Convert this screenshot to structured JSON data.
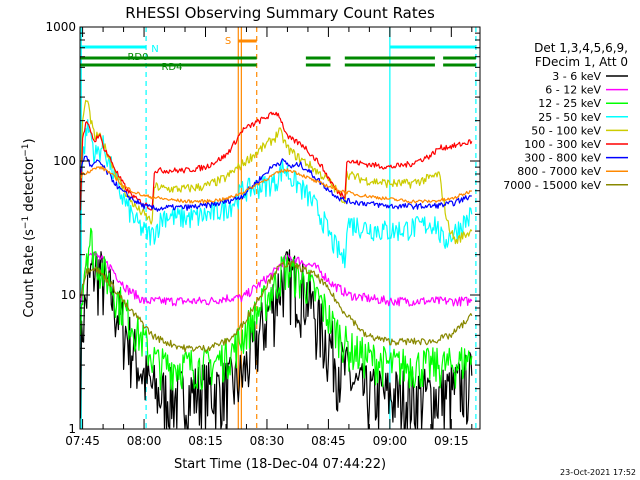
{
  "chart_data": {
    "type": "line",
    "title": "RHESSI Observing Summary Count Rates",
    "xlabel": "Start Time (18-Dec-04 07:44:22)",
    "ylabel": "Count Rate (s⁻¹ detector⁻¹)",
    "ylabel_parts": {
      "main": "Count Rate (s",
      "sup1": "−1",
      "mid": " detector",
      "sup2": "−1",
      "end": ")"
    },
    "y_scale": "log",
    "ylim": [
      1,
      1000
    ],
    "y_ticks": [
      "1",
      "10",
      "100",
      "1000"
    ],
    "xlim": [
      "07:44:22",
      "09:22:00"
    ],
    "x_ticks": [
      "07:45",
      "08:00",
      "08:15",
      "08:30",
      "08:45",
      "09:00",
      "09:15"
    ],
    "timestamp": "23-Oct-2021 17:52",
    "legend": {
      "placement": "top-right",
      "header": [
        "Det 1,3,4,5,6,9,",
        "FDecim 1, Att 0"
      ],
      "entries": [
        {
          "label": "3 - 6 keV",
          "color": "#000000"
        },
        {
          "label": "6 - 12 keV",
          "color": "#ff00ff"
        },
        {
          "label": "12 - 25 keV",
          "color": "#00ff00"
        },
        {
          "label": "25 - 50 keV",
          "color": "#00ffff"
        },
        {
          "label": "50 - 100 keV",
          "color": "#cccc00"
        },
        {
          "label": "100 - 300 keV",
          "color": "#ff0000"
        },
        {
          "label": "300 - 800 keV",
          "color": "#0000ff"
        },
        {
          "label": "800 - 7000 keV",
          "color": "#ff8800"
        },
        {
          "label": "7000 - 15000 keV",
          "color": "#888800"
        }
      ]
    },
    "flag_bars": [
      {
        "label": "N",
        "color": "#00ffff",
        "segments": [
          [
            "07:44:22",
            "08:00:30"
          ],
          [
            "09:00:00",
            "09:21:00"
          ]
        ]
      },
      {
        "label": "S",
        "color": "#ff8800",
        "segments": [
          [
            "08:23:00",
            "08:27:30"
          ]
        ]
      },
      {
        "label": "RD0",
        "color": "#008800",
        "segments": [
          [
            "07:44:22",
            "08:27:30"
          ],
          [
            "08:39:30",
            "08:45:30"
          ],
          [
            "08:49:00",
            "09:11:00"
          ],
          [
            "09:13:00",
            "09:21:00"
          ]
        ]
      },
      {
        "label": "RD4",
        "color": "#008800",
        "segments": [
          [
            "07:44:22",
            "08:27:30"
          ],
          [
            "08:39:30",
            "08:45:30"
          ],
          [
            "08:49:00",
            "09:11:00"
          ],
          [
            "09:13:00",
            "09:21:00"
          ]
        ]
      }
    ],
    "vertical_markers": [
      {
        "time": "07:44:40",
        "color": "#00ffff",
        "style": "solid"
      },
      {
        "time": "08:00:30",
        "color": "#00ffff",
        "style": "dashed"
      },
      {
        "time": "08:23:00",
        "color": "#ff8800",
        "style": "solid"
      },
      {
        "time": "08:23:45",
        "color": "#ff8800",
        "style": "solid"
      },
      {
        "time": "08:27:30",
        "color": "#ff8800",
        "style": "dashed"
      },
      {
        "time": "09:00:00",
        "color": "#00ffff",
        "style": "solid"
      },
      {
        "time": "09:21:00",
        "color": "#00ffff",
        "style": "dashed"
      }
    ],
    "series": [
      {
        "name": "3 - 6 keV",
        "color": "#000000",
        "noise": 0.6,
        "x": [
          "07:44:30",
          "07:45:00",
          "07:46:00",
          "07:47:00",
          "07:48:00",
          "07:49:00",
          "07:50:00",
          "07:52:00",
          "07:54:00",
          "07:56:00",
          "07:58:00",
          "08:00:00",
          "08:02:00",
          "08:04:00",
          "08:06:00",
          "08:10:00",
          "08:14:00",
          "08:18:00",
          "08:22:00",
          "08:24:00",
          "08:32:00",
          "08:34:00",
          "08:36:00",
          "08:38:00",
          "08:40:00",
          "08:42:00",
          "08:44:00",
          "08:46:00",
          "08:48:00",
          "08:50:00",
          "08:52:00",
          "08:56:00",
          "09:00:00",
          "09:04:00",
          "09:08:00",
          "09:12:00",
          "09:16:00",
          "09:20:00"
        ],
        "y": [
          3,
          6,
          10,
          14,
          16,
          15,
          13,
          10,
          7,
          5,
          3.5,
          2.5,
          2,
          1.8,
          1.8,
          1.8,
          2,
          2,
          2.2,
          2.5,
          10,
          14,
          14,
          12,
          10,
          7,
          5,
          4,
          3,
          2.5,
          2,
          1.8,
          1.8,
          1.8,
          1.8,
          1.8,
          2,
          2.5
        ]
      },
      {
        "name": "6 - 12 keV",
        "color": "#ff00ff",
        "noise": 0.08,
        "x": [
          "07:44:30",
          "07:45:00",
          "07:46:00",
          "07:47:00",
          "07:48:00",
          "07:49:00",
          "07:50:00",
          "07:52:00",
          "07:54:00",
          "07:56:00",
          "07:58:00",
          "08:00:00",
          "08:02:00",
          "08:04:00",
          "08:08:00",
          "08:12:00",
          "08:16:00",
          "08:20:00",
          "08:22:00",
          "08:24:00",
          "08:32:00",
          "08:34:00",
          "08:36:00",
          "08:38:00",
          "08:40:00",
          "08:42:00",
          "08:44:00",
          "08:46:00",
          "08:48:00",
          "08:50:00",
          "08:54:00",
          "09:00:00",
          "09:06:00",
          "09:12:00",
          "09:16:00",
          "09:20:00"
        ],
        "y": [
          8,
          12,
          18,
          22,
          20,
          19,
          18,
          16,
          13,
          11,
          10,
          9,
          9,
          9,
          9,
          9,
          9,
          9.5,
          9.5,
          9.5,
          15,
          18,
          19,
          18,
          17,
          16,
          14,
          12,
          11,
          10,
          9.5,
          9,
          9,
          9,
          9,
          9
        ]
      },
      {
        "name": "12 - 25 keV",
        "color": "#00ff00",
        "noise": 0.35,
        "x": [
          "07:44:30",
          "07:45:00",
          "07:46:00",
          "07:47:00",
          "07:48:00",
          "07:49:00",
          "07:50:00",
          "07:52:00",
          "07:54:00",
          "07:56:00",
          "07:58:00",
          "08:00:00",
          "08:02:00",
          "08:04:00",
          "08:08:00",
          "08:12:00",
          "08:16:00",
          "08:20:00",
          "08:22:00",
          "08:24:00",
          "08:32:00",
          "08:34:00",
          "08:36:00",
          "08:38:00",
          "08:40:00",
          "08:42:00",
          "08:44:00",
          "08:46:00",
          "08:48:00",
          "08:50:00",
          "08:54:00",
          "09:00:00",
          "09:06:00",
          "09:12:00",
          "09:16:00",
          "09:20:00"
        ],
        "y": [
          7,
          12,
          22,
          26,
          20,
          17,
          15,
          12,
          9,
          7,
          5.5,
          4.5,
          3.5,
          3,
          3,
          3,
          3,
          3.5,
          4,
          5,
          12,
          16,
          15,
          13,
          12,
          10,
          8,
          6,
          5,
          4,
          3.5,
          3,
          3,
          3,
          3,
          3.5
        ]
      },
      {
        "name": "25 - 50 keV",
        "color": "#00ffff",
        "noise": 0.2,
        "x": [
          "07:44:30",
          "07:45:00",
          "07:46:00",
          "07:47:00",
          "07:48:00",
          "07:49:00",
          "07:50:00",
          "07:52:00",
          "07:54:00",
          "07:56:00",
          "07:58:00",
          "08:00:00",
          "08:02:00",
          "08:05:00",
          "08:08:00",
          "08:12:00",
          "08:16:00",
          "08:20:00",
          "08:22:00",
          "08:24:00",
          "08:32:00",
          "08:34:00",
          "08:36:00",
          "08:38:00",
          "08:40:00",
          "08:42:00",
          "08:44:00",
          "08:46:00",
          "08:49:00",
          "08:49:30",
          "08:54:00",
          "09:00:00",
          "09:06:00",
          "09:11:00",
          "09:13:00",
          "09:16:00",
          "09:20:00"
        ],
        "y": [
          40,
          100,
          180,
          160,
          110,
          120,
          130,
          90,
          60,
          45,
          35,
          30,
          28,
          40,
          38,
          38,
          40,
          45,
          50,
          60,
          70,
          90,
          75,
          65,
          55,
          45,
          35,
          25,
          18,
          35,
          32,
          30,
          32,
          35,
          25,
          30,
          40
        ]
      },
      {
        "name": "50 - 100 keV",
        "color": "#cccc00",
        "noise": 0.08,
        "x": [
          "07:44:30",
          "07:45:00",
          "07:46:00",
          "07:47:00",
          "07:48:00",
          "07:49:00",
          "07:50:00",
          "07:52:00",
          "07:54:00",
          "07:56:00",
          "07:58:00",
          "08:00:00",
          "08:02:00",
          "08:02:30",
          "08:05:00",
          "08:10:00",
          "08:15:00",
          "08:20:00",
          "08:22:00",
          "08:24:00",
          "08:32:00",
          "08:33:00",
          "08:35:00",
          "08:37:00",
          "08:39:00",
          "08:41:00",
          "08:43:00",
          "08:45:00",
          "08:47:00",
          "08:49:00",
          "08:49:30",
          "08:54:00",
          "09:00:00",
          "09:05:00",
          "09:10:00",
          "09:12:00",
          "09:14:00",
          "09:16:00",
          "09:18:00",
          "09:20:00"
        ],
        "y": [
          60,
          200,
          300,
          200,
          150,
          155,
          135,
          100,
          70,
          55,
          45,
          40,
          35,
          65,
          62,
          62,
          65,
          75,
          85,
          95,
          150,
          170,
          125,
          110,
          100,
          90,
          80,
          72,
          60,
          50,
          80,
          72,
          68,
          68,
          75,
          80,
          35,
          25,
          28,
          30
        ]
      },
      {
        "name": "100 - 300 keV",
        "color": "#ff0000",
        "noise": 0.05,
        "x": [
          "07:44:30",
          "07:45:00",
          "07:46:00",
          "07:47:00",
          "07:48:00",
          "07:49:00",
          "07:50:00",
          "07:52:00",
          "07:54:00",
          "07:56:00",
          "07:58:00",
          "08:00:00",
          "08:02:00",
          "08:02:30",
          "08:05:00",
          "08:10:00",
          "08:15:00",
          "08:20:00",
          "08:22:00",
          "08:24:00",
          "08:32:00",
          "08:33:00",
          "08:35:00",
          "08:37:00",
          "08:39:00",
          "08:41:00",
          "08:43:00",
          "08:45:00",
          "08:47:00",
          "08:49:00",
          "08:49:30",
          "08:54:00",
          "09:00:00",
          "09:05:00",
          "09:10:00",
          "09:12:00",
          "09:16:00",
          "09:20:00"
        ],
        "y": [
          45,
          150,
          200,
          160,
          140,
          160,
          130,
          100,
          75,
          60,
          52,
          48,
          44,
          85,
          85,
          85,
          90,
          110,
          135,
          170,
          230,
          220,
          150,
          140,
          130,
          110,
          95,
          75,
          60,
          55,
          100,
          95,
          90,
          95,
          110,
          125,
          130,
          140
        ]
      },
      {
        "name": "300 - 800 keV",
        "color": "#0000ff",
        "noise": 0.05,
        "x": [
          "07:44:30",
          "07:45:00",
          "07:46:00",
          "07:47:00",
          "07:48:00",
          "07:49:00",
          "07:50:00",
          "07:52:00",
          "07:54:00",
          "07:56:00",
          "07:58:00",
          "08:00:00",
          "08:03:00",
          "08:06:00",
          "08:10:00",
          "08:14:00",
          "08:18:00",
          "08:22:00",
          "08:24:00",
          "08:32:00",
          "08:34:00",
          "08:36:00",
          "08:38:00",
          "08:40:00",
          "08:42:00",
          "08:44:00",
          "08:46:00",
          "08:48:00",
          "08:50:00",
          "08:55:00",
          "09:00:00",
          "09:05:00",
          "09:10:00",
          "09:15:00",
          "09:20:00"
        ],
        "y": [
          80,
          100,
          110,
          90,
          95,
          100,
          90,
          75,
          62,
          55,
          50,
          46,
          44,
          45,
          45,
          46,
          48,
          52,
          55,
          95,
          100,
          90,
          95,
          85,
          75,
          65,
          58,
          52,
          50,
          48,
          46,
          46,
          46,
          48,
          55
        ]
      },
      {
        "name": "800 - 7000 keV",
        "color": "#ff8800",
        "noise": 0.03,
        "x": [
          "07:44:30",
          "07:45:00",
          "07:47:00",
          "07:49:00",
          "07:51:00",
          "07:53:00",
          "07:55:00",
          "07:58:00",
          "08:00:00",
          "08:05:00",
          "08:10:00",
          "08:15:00",
          "08:20:00",
          "08:22:00",
          "08:24:00",
          "08:32:00",
          "08:34:00",
          "08:36:00",
          "08:38:00",
          "08:40:00",
          "08:42:00",
          "08:45:00",
          "08:48:00",
          "08:52:00",
          "08:56:00",
          "09:00:00",
          "09:05:00",
          "09:10:00",
          "09:15:00",
          "09:20:00"
        ],
        "y": [
          75,
          80,
          85,
          90,
          85,
          75,
          65,
          58,
          55,
          52,
          50,
          50,
          52,
          55,
          58,
          80,
          85,
          85,
          80,
          75,
          70,
          65,
          60,
          56,
          54,
          52,
          50,
          50,
          52,
          60
        ]
      },
      {
        "name": "7000 - 15000 keV",
        "color": "#888800",
        "noise": 0.06,
        "x": [
          "07:44:30",
          "07:45:00",
          "07:46:00",
          "07:47:00",
          "07:48:00",
          "07:49:00",
          "07:50:00",
          "07:52:00",
          "07:54:00",
          "07:56:00",
          "07:58:00",
          "08:00:00",
          "08:02:00",
          "08:05:00",
          "08:10:00",
          "08:15:00",
          "08:20:00",
          "08:22:00",
          "08:24:00",
          "08:32:00",
          "08:34:00",
          "08:36:00",
          "08:38:00",
          "08:40:00",
          "08:42:00",
          "08:44:00",
          "08:46:00",
          "08:48:00",
          "08:50:00",
          "08:54:00",
          "09:00:00",
          "09:05:00",
          "09:10:00",
          "09:15:00",
          "09:20:00"
        ],
        "y": [
          10,
          12,
          15,
          16,
          16,
          15,
          14,
          12,
          10,
          8,
          7,
          6,
          5,
          4.5,
          4,
          4,
          4.5,
          5,
          6,
          15,
          17,
          17,
          16,
          15,
          14,
          12,
          10,
          8,
          7,
          5,
          4.5,
          4.5,
          4.5,
          5,
          7
        ]
      }
    ]
  }
}
